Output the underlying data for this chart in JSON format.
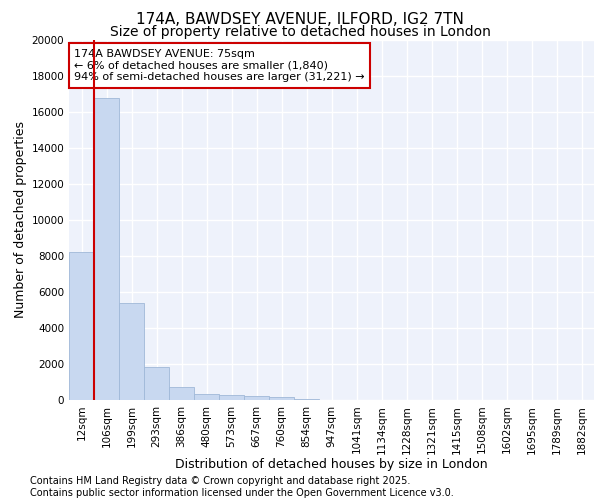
{
  "title_line1": "174A, BAWDSEY AVENUE, ILFORD, IG2 7TN",
  "title_line2": "Size of property relative to detached houses in London",
  "xlabel": "Distribution of detached houses by size in London",
  "ylabel": "Number of detached properties",
  "categories": [
    "12sqm",
    "106sqm",
    "199sqm",
    "293sqm",
    "386sqm",
    "480sqm",
    "573sqm",
    "667sqm",
    "760sqm",
    "854sqm",
    "947sqm",
    "1041sqm",
    "1134sqm",
    "1228sqm",
    "1321sqm",
    "1415sqm",
    "1508sqm",
    "1602sqm",
    "1695sqm",
    "1789sqm",
    "1882sqm"
  ],
  "values": [
    8200,
    16800,
    5400,
    1850,
    700,
    330,
    270,
    210,
    160,
    80,
    0,
    0,
    0,
    0,
    0,
    0,
    0,
    0,
    0,
    0,
    0
  ],
  "bar_color": "#c8d8f0",
  "bar_edge_color": "#a0b8d8",
  "annotation_title": "174A BAWDSEY AVENUE: 75sqm",
  "annotation_line1": "← 6% of detached houses are smaller (1,840)",
  "annotation_line2": "94% of semi-detached houses are larger (31,221) →",
  "annotation_box_facecolor": "#ffffff",
  "annotation_box_edgecolor": "#cc0000",
  "red_line_color": "#cc0000",
  "footer_line1": "Contains HM Land Registry data © Crown copyright and database right 2025.",
  "footer_line2": "Contains public sector information licensed under the Open Government Licence v3.0.",
  "ylim": [
    0,
    20000
  ],
  "yticks": [
    0,
    2000,
    4000,
    6000,
    8000,
    10000,
    12000,
    14000,
    16000,
    18000,
    20000
  ],
  "bg_color": "#eef2fb",
  "grid_color": "#ffffff",
  "title_fontsize": 11,
  "subtitle_fontsize": 10,
  "axis_label_fontsize": 9,
  "tick_fontsize": 7.5,
  "footer_fontsize": 7,
  "annotation_fontsize": 8
}
